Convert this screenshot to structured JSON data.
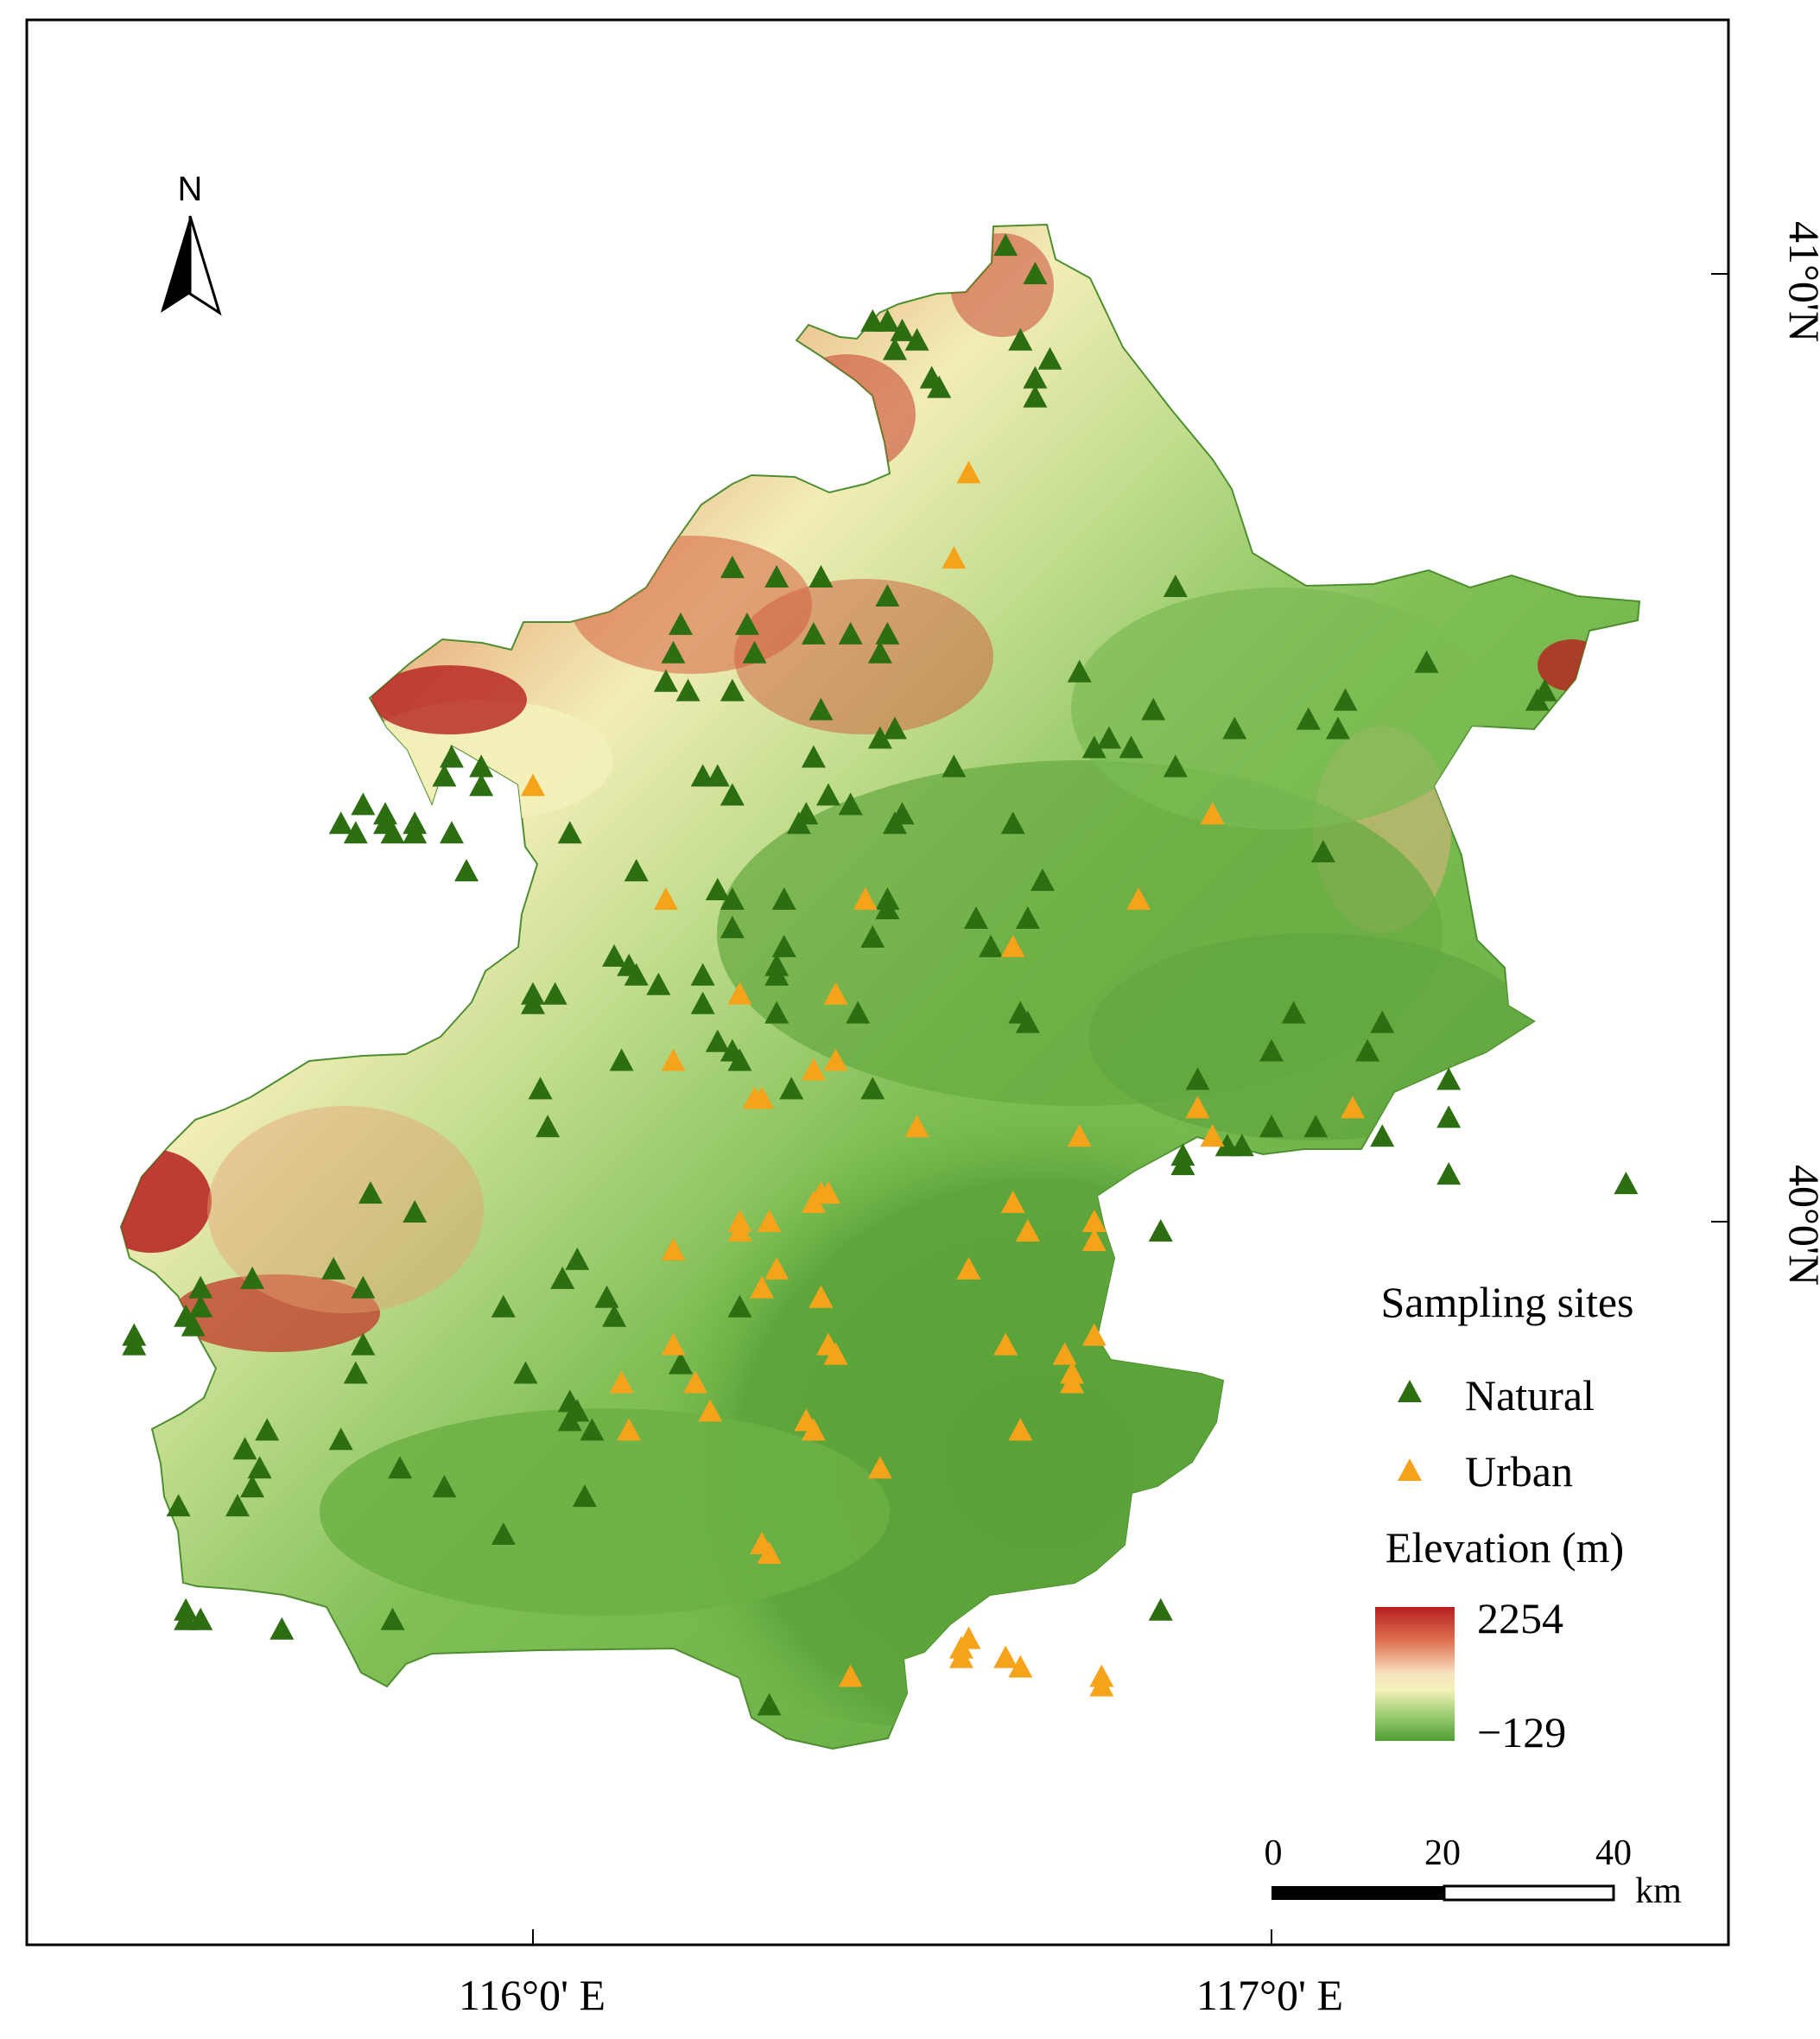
{
  "north_arrow": {
    "label": "N"
  },
  "axes": {
    "x_ticks": [
      {
        "value": 116.0,
        "label": "116°0' E"
      },
      {
        "value": 117.0,
        "label": "117°0' E"
      }
    ],
    "y_ticks": [
      {
        "value": 41.0,
        "label": "41°0'N"
      },
      {
        "value": 40.0,
        "label": "40°0'N"
      }
    ]
  },
  "legend": {
    "title": "Sampling sites",
    "natural_label": "Natural",
    "urban_label": "Urban",
    "elevation_title": "Elevation (m)",
    "elevation_max": "2254",
    "elevation_min": "−129"
  },
  "scale_bar": {
    "labels": [
      "0",
      "20",
      "40"
    ],
    "unit": "km"
  },
  "colors": {
    "natural": "#2e6e12",
    "urban": "#f5a31a",
    "high": "#b51f1f",
    "mid": "#f3f2b8",
    "low": "#5aa33a"
  },
  "chart_data": {
    "type": "scatter",
    "x_range": [
      115.42,
      117.57
    ],
    "y_range": [
      39.44,
      41.06
    ],
    "series": [
      {
        "name": "Natural",
        "points": [
          [
            116.64,
            41.03
          ],
          [
            116.68,
            41.0
          ],
          [
            116.46,
            40.95
          ],
          [
            116.48,
            40.95
          ],
          [
            116.5,
            40.94
          ],
          [
            116.52,
            40.93
          ],
          [
            116.49,
            40.92
          ],
          [
            116.66,
            40.93
          ],
          [
            116.7,
            40.91
          ],
          [
            116.54,
            40.89
          ],
          [
            116.68,
            40.89
          ],
          [
            116.55,
            40.88
          ],
          [
            116.68,
            40.87
          ],
          [
            116.27,
            40.69
          ],
          [
            116.33,
            40.68
          ],
          [
            116.39,
            40.68
          ],
          [
            116.87,
            40.67
          ],
          [
            116.48,
            40.66
          ],
          [
            116.2,
            40.63
          ],
          [
            116.29,
            40.63
          ],
          [
            116.38,
            40.62
          ],
          [
            116.43,
            40.62
          ],
          [
            116.48,
            40.62
          ],
          [
            116.19,
            40.6
          ],
          [
            116.3,
            40.6
          ],
          [
            116.47,
            40.6
          ],
          [
            116.18,
            40.57
          ],
          [
            116.27,
            40.56
          ],
          [
            116.39,
            40.54
          ],
          [
            116.21,
            40.56
          ],
          [
            117.21,
            40.59
          ],
          [
            117.37,
            40.56
          ],
          [
            116.74,
            40.58
          ],
          [
            117.36,
            40.55
          ],
          [
            116.84,
            40.54
          ],
          [
            117.1,
            40.55
          ],
          [
            117.05,
            40.53
          ],
          [
            116.95,
            40.52
          ],
          [
            117.09,
            40.52
          ],
          [
            116.49,
            40.52
          ],
          [
            116.47,
            40.51
          ],
          [
            116.76,
            40.5
          ],
          [
            116.78,
            40.51
          ],
          [
            116.81,
            40.5
          ],
          [
            116.38,
            40.49
          ],
          [
            116.57,
            40.48
          ],
          [
            116.87,
            40.48
          ],
          [
            115.93,
            40.48
          ],
          [
            115.89,
            40.49
          ],
          [
            115.88,
            40.47
          ],
          [
            115.93,
            40.46
          ],
          [
            116.23,
            40.47
          ],
          [
            116.25,
            40.47
          ],
          [
            116.27,
            40.45
          ],
          [
            116.4,
            40.45
          ],
          [
            116.37,
            40.43
          ],
          [
            116.43,
            40.44
          ],
          [
            116.36,
            40.42
          ],
          [
            116.5,
            40.43
          ],
          [
            116.49,
            40.42
          ],
          [
            116.65,
            40.42
          ],
          [
            115.77,
            40.44
          ],
          [
            115.8,
            40.43
          ],
          [
            115.8,
            40.42
          ],
          [
            115.84,
            40.42
          ],
          [
            115.81,
            40.41
          ],
          [
            115.74,
            40.42
          ],
          [
            115.76,
            40.41
          ],
          [
            115.84,
            40.41
          ],
          [
            115.89,
            40.41
          ],
          [
            116.05,
            40.41
          ],
          [
            115.91,
            40.37
          ],
          [
            116.14,
            40.37
          ],
          [
            116.25,
            40.35
          ],
          [
            116.27,
            40.34
          ],
          [
            116.34,
            40.34
          ],
          [
            116.48,
            40.34
          ],
          [
            116.48,
            40.33
          ],
          [
            116.6,
            40.32
          ],
          [
            116.67,
            40.32
          ],
          [
            116.69,
            40.36
          ],
          [
            117.07,
            40.39
          ],
          [
            116.27,
            40.31
          ],
          [
            116.34,
            40.29
          ],
          [
            116.46,
            40.3
          ],
          [
            116.62,
            40.29
          ],
          [
            116.65,
            40.29
          ],
          [
            116.11,
            40.28
          ],
          [
            116.13,
            40.27
          ],
          [
            116.14,
            40.26
          ],
          [
            116.17,
            40.25
          ],
          [
            116.33,
            40.27
          ],
          [
            116.33,
            40.26
          ],
          [
            116.23,
            40.26
          ],
          [
            116.0,
            40.24
          ],
          [
            116.0,
            40.23
          ],
          [
            116.03,
            40.24
          ],
          [
            116.23,
            40.23
          ],
          [
            116.33,
            40.22
          ],
          [
            116.44,
            40.22
          ],
          [
            117.0,
            40.18
          ],
          [
            117.03,
            40.22
          ],
          [
            117.15,
            40.21
          ],
          [
            117.13,
            40.18
          ],
          [
            116.66,
            40.22
          ],
          [
            116.67,
            40.21
          ],
          [
            116.25,
            40.19
          ],
          [
            116.27,
            40.18
          ],
          [
            116.28,
            40.17
          ],
          [
            116.12,
            40.17
          ],
          [
            116.01,
            40.14
          ],
          [
            116.35,
            40.14
          ],
          [
            116.46,
            40.14
          ],
          [
            116.9,
            40.15
          ],
          [
            117.24,
            40.15
          ],
          [
            117.0,
            40.1
          ],
          [
            117.06,
            40.1
          ],
          [
            117.24,
            40.11
          ],
          [
            117.15,
            40.09
          ],
          [
            116.02,
            40.1
          ],
          [
            116.94,
            40.08
          ],
          [
            116.96,
            40.08
          ],
          [
            116.88,
            40.07
          ],
          [
            116.88,
            40.06
          ],
          [
            117.24,
            40.05
          ],
          [
            117.48,
            40.04
          ],
          [
            115.78,
            40.03
          ],
          [
            115.84,
            40.01
          ],
          [
            116.19,
            39.97
          ],
          [
            116.06,
            39.96
          ],
          [
            116.1,
            39.92
          ],
          [
            116.11,
            39.9
          ],
          [
            115.73,
            39.95
          ],
          [
            115.77,
            39.93
          ],
          [
            116.04,
            39.94
          ],
          [
            115.62,
            39.94
          ],
          [
            115.55,
            39.93
          ],
          [
            116.28,
            39.91
          ],
          [
            115.96,
            39.91
          ],
          [
            116.85,
            39.99
          ],
          [
            115.55,
            39.91
          ],
          [
            115.53,
            39.9
          ],
          [
            115.54,
            39.89
          ],
          [
            115.46,
            39.88
          ],
          [
            115.46,
            39.87
          ],
          [
            115.77,
            39.87
          ],
          [
            116.2,
            39.85
          ],
          [
            115.76,
            39.84
          ],
          [
            115.99,
            39.84
          ],
          [
            116.05,
            39.81
          ],
          [
            116.06,
            39.8
          ],
          [
            116.05,
            39.79
          ],
          [
            116.08,
            39.78
          ],
          [
            115.64,
            39.78
          ],
          [
            115.74,
            39.77
          ],
          [
            115.61,
            39.76
          ],
          [
            115.63,
            39.74
          ],
          [
            115.82,
            39.74
          ],
          [
            115.62,
            39.72
          ],
          [
            115.88,
            39.72
          ],
          [
            116.07,
            39.71
          ],
          [
            115.52,
            39.7
          ],
          [
            115.6,
            39.7
          ],
          [
            115.96,
            39.67
          ],
          [
            115.53,
            39.59
          ],
          [
            115.55,
            39.58
          ],
          [
            115.53,
            39.58
          ],
          [
            115.66,
            39.57
          ],
          [
            115.81,
            39.58
          ],
          [
            116.85,
            39.59
          ],
          [
            116.32,
            39.49
          ]
        ]
      },
      {
        "name": "Urban",
        "points": [
          [
            116.59,
            40.79
          ],
          [
            116.57,
            40.7
          ],
          [
            116.0,
            40.46
          ],
          [
            116.92,
            40.43
          ],
          [
            116.18,
            40.34
          ],
          [
            116.45,
            40.34
          ],
          [
            116.82,
            40.34
          ],
          [
            116.65,
            40.29
          ],
          [
            116.28,
            40.24
          ],
          [
            116.41,
            40.24
          ],
          [
            116.19,
            40.17
          ],
          [
            116.41,
            40.17
          ],
          [
            116.38,
            40.16
          ],
          [
            116.3,
            40.13
          ],
          [
            116.31,
            40.13
          ],
          [
            116.52,
            40.1
          ],
          [
            116.52,
            40.1
          ],
          [
            116.9,
            40.12
          ],
          [
            116.92,
            40.09
          ],
          [
            116.74,
            40.09
          ],
          [
            117.11,
            40.12
          ],
          [
            116.39,
            40.03
          ],
          [
            116.4,
            40.03
          ],
          [
            116.38,
            40.02
          ],
          [
            116.65,
            40.02
          ],
          [
            116.28,
            40.0
          ],
          [
            116.28,
            39.99
          ],
          [
            116.32,
            40.0
          ],
          [
            116.67,
            39.99
          ],
          [
            116.76,
            40.0
          ],
          [
            116.76,
            39.98
          ],
          [
            116.19,
            39.97
          ],
          [
            116.33,
            39.95
          ],
          [
            116.59,
            39.95
          ],
          [
            116.31,
            39.93
          ],
          [
            116.39,
            39.92
          ],
          [
            116.39,
            39.92
          ],
          [
            116.19,
            39.87
          ],
          [
            116.4,
            39.87
          ],
          [
            116.41,
            39.86
          ],
          [
            116.64,
            39.87
          ],
          [
            116.72,
            39.86
          ],
          [
            116.76,
            39.88
          ],
          [
            116.12,
            39.83
          ],
          [
            116.22,
            39.83
          ],
          [
            116.24,
            39.8
          ],
          [
            116.37,
            39.79
          ],
          [
            116.73,
            39.84
          ],
          [
            116.73,
            39.83
          ],
          [
            116.13,
            39.78
          ],
          [
            116.38,
            39.78
          ],
          [
            116.66,
            39.78
          ],
          [
            116.47,
            39.74
          ],
          [
            116.31,
            39.66
          ],
          [
            116.32,
            39.65
          ],
          [
            116.59,
            39.56
          ],
          [
            116.58,
            39.55
          ],
          [
            116.64,
            39.54
          ],
          [
            116.66,
            39.53
          ],
          [
            116.58,
            39.54
          ],
          [
            116.43,
            39.52
          ],
          [
            116.77,
            39.52
          ],
          [
            116.77,
            39.51
          ]
        ]
      }
    ]
  }
}
